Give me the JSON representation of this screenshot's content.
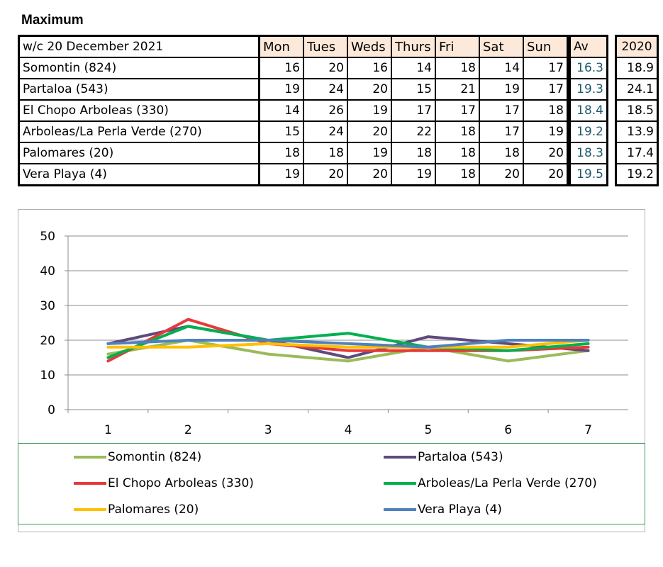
{
  "heading": "Maximum",
  "week_label": "w/c 20 December 2021",
  "days": [
    "Mon",
    "Tues",
    "Weds",
    "Thurs",
    "Fri",
    "Sat",
    "Sun"
  ],
  "av_label": "Av",
  "year_label": "2020",
  "rows": [
    {
      "name": "Somontin (824)",
      "values": [
        "16",
        "20",
        "16",
        "14",
        "18",
        "14",
        "17"
      ],
      "av": "16.3",
      "prev": "18.9"
    },
    {
      "name": "Partaloa (543)",
      "values": [
        "19",
        "24",
        "20",
        "15",
        "21",
        "19",
        "17"
      ],
      "av": "19.3",
      "prev": "24.1"
    },
    {
      "name": "El Chopo  Arboleas (330)",
      "values": [
        "14",
        "26",
        "19",
        "17",
        "17",
        "17",
        "18"
      ],
      "av": "18.4",
      "prev": "18.5"
    },
    {
      "name": "Arboleas/La Perla Verde (270)",
      "values": [
        "15",
        "24",
        "20",
        "22",
        "18",
        "17",
        "19"
      ],
      "av": "19.2",
      "prev": "13.9"
    },
    {
      "name": "Palomares (20)",
      "values": [
        "18",
        "18",
        "19",
        "18",
        "18",
        "18",
        "20"
      ],
      "av": "18.3",
      "prev": "17.4"
    },
    {
      "name": "Vera Playa (4)",
      "values": [
        "19",
        "20",
        "20",
        "19",
        "18",
        "20",
        "20"
      ],
      "av": "19.5",
      "prev": "19.2"
    }
  ],
  "chart_data": {
    "type": "line",
    "title": "",
    "xlabel": "",
    "ylabel": "",
    "x": [
      1,
      2,
      3,
      4,
      5,
      6,
      7
    ],
    "x_tick_labels": [
      "1",
      "2",
      "3",
      "4",
      "5",
      "6",
      "7"
    ],
    "y_tick_labels": [
      "0",
      "10",
      "20",
      "30",
      "40",
      "50"
    ],
    "ylim": [
      0,
      50
    ],
    "grid": true,
    "legend": "bottom",
    "series": [
      {
        "name": "Somontin (824)",
        "color": "#9bbb59",
        "values": [
          16,
          20,
          16,
          14,
          18,
          14,
          17
        ]
      },
      {
        "name": "Partaloa (543)",
        "color": "#604a7b",
        "values": [
          19,
          24,
          20,
          15,
          21,
          19,
          17
        ]
      },
      {
        "name": "El Chopo  Arboleas (330)",
        "color": "#e8393a",
        "values": [
          14,
          26,
          19,
          17,
          17,
          17,
          18
        ]
      },
      {
        "name": "Arboleas/La Perla Verde (270)",
        "color": "#00b050",
        "values": [
          15,
          24,
          20,
          22,
          18,
          17,
          19
        ]
      },
      {
        "name": "Palomares (20)",
        "color": "#ffc000",
        "values": [
          18,
          18,
          19,
          18,
          18,
          18,
          20
        ]
      },
      {
        "name": "Vera Playa (4)",
        "color": "#4f81bd",
        "values": [
          19,
          20,
          20,
          19,
          18,
          20,
          20
        ]
      }
    ]
  }
}
